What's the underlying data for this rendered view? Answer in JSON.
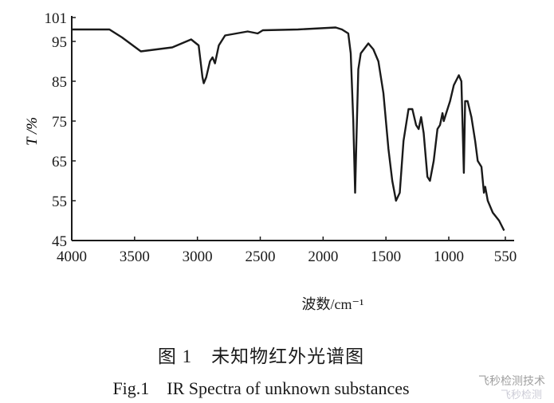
{
  "chart_data": {
    "type": "line",
    "title": "",
    "xlabel": "波数/cm⁻¹",
    "ylabel": "T /%",
    "xlim": [
      4000,
      500
    ],
    "ylim": [
      45,
      101
    ],
    "x_ticks": [
      4000,
      3500,
      3000,
      2500,
      2000,
      1500,
      1000,
      550
    ],
    "y_ticks": [
      45,
      55,
      65,
      75,
      85,
      95,
      101
    ],
    "grid": false,
    "series": [
      {
        "color": "#1a1a1a",
        "x": [
          4000,
          3700,
          3600,
          3450,
          3200,
          3050,
          2990,
          2960,
          2950,
          2930,
          2900,
          2880,
          2860,
          2830,
          2780,
          2600,
          2520,
          2480,
          2200,
          1900,
          1850,
          1800,
          1780,
          1760,
          1745,
          1735,
          1720,
          1700,
          1640,
          1600,
          1560,
          1520,
          1480,
          1450,
          1420,
          1390,
          1360,
          1320,
          1290,
          1260,
          1240,
          1220,
          1200,
          1170,
          1150,
          1120,
          1090,
          1070,
          1050,
          1040,
          1020,
          990,
          960,
          920,
          900,
          890,
          880,
          870,
          850,
          820,
          790,
          770,
          740,
          720,
          710,
          690,
          650,
          600,
          560
        ],
        "y": [
          98,
          98,
          96,
          92.5,
          93.5,
          95.5,
          94,
          86,
          84.5,
          86,
          90,
          91,
          89.5,
          94,
          96.5,
          97.5,
          97,
          97.8,
          98,
          98.5,
          98,
          97,
          92,
          75,
          57,
          70,
          88,
          92,
          94.5,
          93,
          90,
          82,
          68,
          60,
          55,
          57,
          70,
          78,
          78,
          74,
          73,
          76,
          72,
          61,
          60,
          65,
          73,
          74,
          77,
          75,
          77,
          80,
          84,
          86.5,
          85,
          74,
          62,
          80,
          80,
          76,
          70,
          65,
          63.5,
          57,
          58.5,
          55,
          52,
          50,
          47.5
        ]
      }
    ]
  },
  "captions": {
    "cn": "图 1　未知物红外光谱图",
    "en": "Fig.1　IR Spectra of unknown substances"
  },
  "watermark": {
    "line1": "飞秒检测技术",
    "line2": "飞秒检测"
  }
}
